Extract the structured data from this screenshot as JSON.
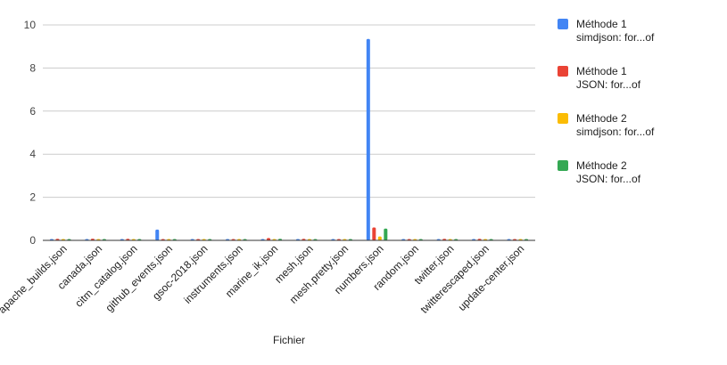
{
  "chart_data": {
    "type": "bar",
    "xlabel": "Fichier",
    "ylabel": "",
    "ylim": [
      0,
      10
    ],
    "yticks": [
      0,
      2,
      4,
      6,
      8,
      10
    ],
    "grid": true,
    "legend_position": "right",
    "categories": [
      "apache_builds.json",
      "canada.json",
      "citm_catalog.json",
      "github_events.json",
      "gsoc-2018.json",
      "instruments.json",
      "marine_ik.json",
      "mesh.json",
      "mesh.pretty.json",
      "numbers.json",
      "random.json",
      "twitter.json",
      "twitterescaped.json",
      "update-center.json"
    ],
    "series": [
      {
        "name": [
          "Méthode 1",
          "simdjson: for...of"
        ],
        "color": "#4285f4",
        "values": [
          0.04,
          0.04,
          0.03,
          0.5,
          0.03,
          0.03,
          0.03,
          0.03,
          0.03,
          9.35,
          0.03,
          0.03,
          0.03,
          0.03
        ]
      },
      {
        "name": [
          "Méthode 1",
          "JSON: for...of"
        ],
        "color": "#ea4335",
        "values": [
          0.07,
          0.08,
          0.07,
          0.01,
          0.06,
          0.06,
          0.11,
          0.07,
          0.06,
          0.6,
          0.06,
          0.07,
          0.07,
          0.06
        ]
      },
      {
        "name": [
          "Méthode 2",
          "simdjson: for...of"
        ],
        "color": "#fbbc04",
        "values": [
          0.02,
          0.02,
          0.02,
          0.01,
          0.02,
          0.02,
          0.02,
          0.02,
          0.02,
          0.18,
          0.02,
          0.02,
          0.02,
          0.02
        ]
      },
      {
        "name": [
          "Méthode 2",
          "JSON: for...of"
        ],
        "color": "#34a853",
        "values": [
          0.04,
          0.04,
          0.04,
          0.01,
          0.04,
          0.04,
          0.07,
          0.06,
          0.04,
          0.55,
          0.06,
          0.04,
          0.04,
          0.06
        ]
      }
    ]
  }
}
